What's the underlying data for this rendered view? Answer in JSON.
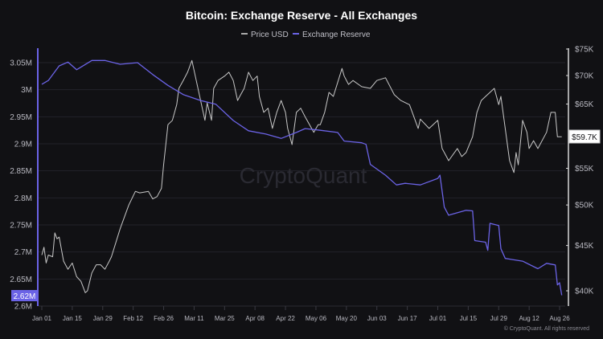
{
  "chart_data": {
    "type": "line",
    "title": "Bitcoin: Exchange Reserve - All Exchanges",
    "legend": [
      "Price USD",
      "Exchange Reserve"
    ],
    "legend_position": "top-center",
    "grid": true,
    "watermark": "CryptoQuant",
    "copyright": "© CryptoQuant. All rights reserved",
    "colors": {
      "background": "#111114",
      "price": "#c8c8c8",
      "reserve": "#6b63e6",
      "grid": "#23232a",
      "text": "#b8b8c0"
    },
    "x_ticks": [
      "Jan 01",
      "Jan 15",
      "Jan 29",
      "Feb 12",
      "Feb 26",
      "Mar 11",
      "Mar 25",
      "Apr 08",
      "Apr 22",
      "May 06",
      "May 20",
      "Jun 03",
      "Jun 17",
      "Jul 01",
      "Jul 15",
      "Jul 29",
      "Aug 12",
      "Aug 26"
    ],
    "left_axis": {
      "ticks": [
        "3.05M",
        "3M",
        "2.95M",
        "2.9M",
        "2.85M",
        "2.8M",
        "2.75M",
        "2.7M",
        "2.65M",
        "2.6M"
      ],
      "ylim": [
        2.6,
        3.05
      ],
      "unit": "M",
      "current_label": "2.62M"
    },
    "right_axis": {
      "ticks": [
        "$75K",
        "$70K",
        "$65K",
        "$60K",
        "$55K",
        "$50K",
        "$45K",
        "$40K"
      ],
      "ylim": [
        40,
        75
      ],
      "scale": "log",
      "unit": "K USD",
      "current_label": "$59.7K"
    },
    "series": [
      {
        "name": "Exchange Reserve",
        "axis": "left",
        "points": [
          [
            "01-01",
            3.01
          ],
          [
            "01-04",
            3.017
          ],
          [
            "01-09",
            3.044
          ],
          [
            "01-13",
            3.051
          ],
          [
            "01-17",
            3.037
          ],
          [
            "01-24",
            3.054
          ],
          [
            "01-30",
            3.054
          ],
          [
            "02-06",
            3.047
          ],
          [
            "02-14",
            3.05
          ],
          [
            "02-21",
            3.028
          ],
          [
            "02-28",
            3.008
          ],
          [
            "03-06",
            2.991
          ],
          [
            "03-14",
            2.98
          ],
          [
            "03-21",
            2.973
          ],
          [
            "03-29",
            2.943
          ],
          [
            "04-05",
            2.924
          ],
          [
            "04-13",
            2.918
          ],
          [
            "04-20",
            2.91
          ],
          [
            "04-27",
            2.921
          ],
          [
            "05-01",
            2.928
          ],
          [
            "05-08",
            2.925
          ],
          [
            "05-16",
            2.921
          ],
          [
            "05-19",
            2.905
          ],
          [
            "05-27",
            2.902
          ],
          [
            "05-29",
            2.899
          ],
          [
            "05-31",
            2.862
          ],
          [
            "06-07",
            2.842
          ],
          [
            "06-12",
            2.824
          ],
          [
            "06-16",
            2.827
          ],
          [
            "06-23",
            2.824
          ],
          [
            "07-01",
            2.836
          ],
          [
            "07-02",
            2.842
          ],
          [
            "07-04",
            2.783
          ],
          [
            "07-06",
            2.768
          ],
          [
            "07-14",
            2.777
          ],
          [
            "07-17",
            2.776
          ],
          [
            "07-18",
            2.721
          ],
          [
            "07-23",
            2.718
          ],
          [
            "07-24",
            2.703
          ],
          [
            "07-25",
            2.753
          ],
          [
            "07-29",
            2.749
          ],
          [
            "07-30",
            2.706
          ],
          [
            "08-01",
            2.688
          ],
          [
            "08-09",
            2.683
          ],
          [
            "08-16",
            2.669
          ],
          [
            "08-20",
            2.679
          ],
          [
            "08-24",
            2.676
          ],
          [
            "08-25",
            2.639
          ],
          [
            "08-26",
            2.643
          ],
          [
            "08-27",
            2.62
          ]
        ]
      },
      {
        "name": "Price USD",
        "axis": "right",
        "points": [
          [
            "01-01",
            43.9
          ],
          [
            "01-02",
            44.8
          ],
          [
            "01-03",
            43.0
          ],
          [
            "01-04",
            43.9
          ],
          [
            "01-06",
            43.7
          ],
          [
            "01-07",
            46.5
          ],
          [
            "01-08",
            45.8
          ],
          [
            "01-09",
            46.0
          ],
          [
            "01-11",
            43.2
          ],
          [
            "01-13",
            42.3
          ],
          [
            "01-15",
            43.0
          ],
          [
            "01-17",
            41.5
          ],
          [
            "01-19",
            41.0
          ],
          [
            "01-21",
            39.8
          ],
          [
            "01-22",
            40.0
          ],
          [
            "01-24",
            41.9
          ],
          [
            "01-26",
            42.8
          ],
          [
            "01-28",
            42.8
          ],
          [
            "01-30",
            42.3
          ],
          [
            "02-01",
            43.2
          ],
          [
            "02-02",
            43.7
          ],
          [
            "02-06",
            47.0
          ],
          [
            "02-10",
            50.0
          ],
          [
            "02-13",
            51.8
          ],
          [
            "02-15",
            51.6
          ],
          [
            "02-19",
            51.8
          ],
          [
            "02-21",
            50.8
          ],
          [
            "02-23",
            51.1
          ],
          [
            "02-25",
            52.2
          ],
          [
            "02-26",
            55.5
          ],
          [
            "02-28",
            61.6
          ],
          [
            "03-01",
            62.3
          ],
          [
            "03-03",
            64.9
          ],
          [
            "03-04",
            67.7
          ],
          [
            "03-06",
            69.1
          ],
          [
            "03-08",
            70.6
          ],
          [
            "03-10",
            72.8
          ],
          [
            "03-12",
            69.1
          ],
          [
            "03-14",
            65.6
          ],
          [
            "03-16",
            62.3
          ],
          [
            "03-17",
            65.2
          ],
          [
            "03-19",
            62.3
          ],
          [
            "03-20",
            67.7
          ],
          [
            "03-22",
            69.1
          ],
          [
            "03-25",
            69.9
          ],
          [
            "03-27",
            70.6
          ],
          [
            "03-29",
            69.1
          ],
          [
            "03-31",
            65.6
          ],
          [
            "04-01",
            66.3
          ],
          [
            "04-03",
            67.7
          ],
          [
            "04-05",
            70.6
          ],
          [
            "04-07",
            69.1
          ],
          [
            "04-09",
            69.9
          ],
          [
            "04-10",
            66.3
          ],
          [
            "04-12",
            63.6
          ],
          [
            "04-14",
            64.3
          ],
          [
            "04-16",
            61.0
          ],
          [
            "04-18",
            63.6
          ],
          [
            "04-20",
            65.6
          ],
          [
            "04-22",
            63.6
          ],
          [
            "04-23",
            61.0
          ],
          [
            "04-25",
            58.5
          ],
          [
            "04-27",
            63.6
          ],
          [
            "04-29",
            64.3
          ],
          [
            "05-01",
            62.9
          ],
          [
            "05-05",
            60.4
          ],
          [
            "05-07",
            61.6
          ],
          [
            "05-08",
            61.6
          ],
          [
            "05-10",
            63.6
          ],
          [
            "05-12",
            67.0
          ],
          [
            "05-14",
            66.3
          ],
          [
            "05-18",
            71.3
          ],
          [
            "05-19",
            69.9
          ],
          [
            "05-21",
            68.4
          ],
          [
            "05-23",
            69.1
          ],
          [
            "05-27",
            68.0
          ],
          [
            "05-31",
            67.7
          ],
          [
            "06-03",
            69.1
          ],
          [
            "06-07",
            69.6
          ],
          [
            "06-11",
            66.6
          ],
          [
            "06-14",
            65.6
          ],
          [
            "06-18",
            64.9
          ],
          [
            "06-22",
            61.0
          ],
          [
            "06-23",
            62.5
          ],
          [
            "06-27",
            61.0
          ],
          [
            "07-01",
            62.3
          ],
          [
            "07-03",
            57.9
          ],
          [
            "07-05",
            56.7
          ],
          [
            "07-06",
            56.1
          ],
          [
            "07-10",
            57.9
          ],
          [
            "07-12",
            56.7
          ],
          [
            "07-14",
            57.3
          ],
          [
            "07-17",
            59.7
          ],
          [
            "07-19",
            63.6
          ],
          [
            "07-21",
            65.6
          ],
          [
            "07-23",
            66.3
          ],
          [
            "07-27",
            67.7
          ],
          [
            "07-29",
            64.9
          ],
          [
            "07-30",
            66.3
          ],
          [
            "08-01",
            61.0
          ],
          [
            "08-03",
            56.1
          ],
          [
            "08-05",
            54.4
          ],
          [
            "08-06",
            57.3
          ],
          [
            "08-07",
            55.5
          ],
          [
            "08-09",
            62.3
          ],
          [
            "08-11",
            60.4
          ],
          [
            "08-12",
            57.9
          ],
          [
            "08-14",
            59.1
          ],
          [
            "08-16",
            57.9
          ],
          [
            "08-20",
            60.4
          ],
          [
            "08-22",
            63.6
          ],
          [
            "08-24",
            63.6
          ],
          [
            "08-25",
            59.7
          ],
          [
            "08-27",
            59.7
          ]
        ]
      }
    ]
  }
}
